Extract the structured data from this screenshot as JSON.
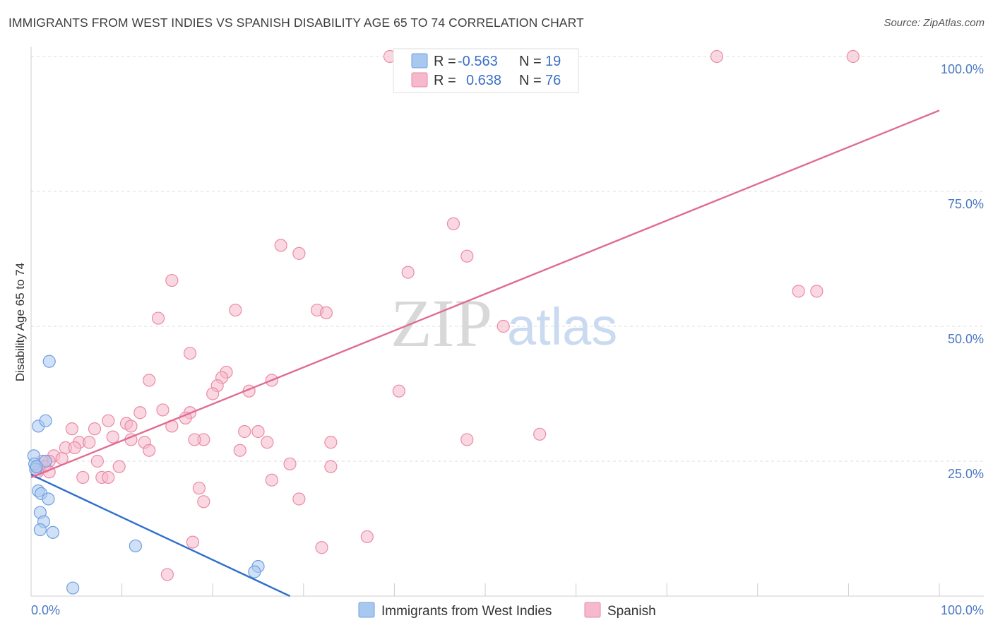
{
  "header": {
    "title": "IMMIGRANTS FROM WEST INDIES VS SPANISH DISABILITY AGE 65 TO 74 CORRELATION CHART",
    "source": "Source: ZipAtlas.com"
  },
  "watermark": {
    "zip": "ZIP",
    "atlas": "atlas"
  },
  "legend": {
    "rows": [
      {
        "r_label": "R =",
        "r_value": "-0.563",
        "n_label": "N =",
        "n_value": "19",
        "color": "#a9c8f0"
      },
      {
        "r_label": "R =",
        "r_value": "0.638",
        "n_label": "N =",
        "n_value": "76",
        "color": "#f6b8cb"
      }
    ]
  },
  "bottom_legend": [
    {
      "label": "Immigrants from West Indies",
      "color": "#a9c8f0"
    },
    {
      "label": "Spanish",
      "color": "#f6b8cb"
    }
  ],
  "chart_data": {
    "type": "scatter",
    "title": "IMMIGRANTS FROM WEST INDIES VS SPANISH DISABILITY AGE 65 TO 74 CORRELATION CHART",
    "xlabel": "",
    "ylabel": "Disability Age 65 to 74",
    "xlim": [
      0,
      100
    ],
    "ylim": [
      0,
      100
    ],
    "x_tick_labels": [
      "0.0%",
      "100.0%"
    ],
    "y_tick_labels": [
      "25.0%",
      "50.0%",
      "75.0%",
      "100.0%"
    ],
    "y_ticks": [
      25,
      50,
      75,
      100
    ],
    "grid": true,
    "legend_position": "top-center",
    "series": [
      {
        "name": "Immigrants from West Indies",
        "color": "#6f9fe0",
        "fill": "#a9c8f0",
        "trend_color": "#2f6fcc",
        "trend": {
          "x": [
            0,
            28.5
          ],
          "y": [
            22.5,
            0
          ]
        },
        "points": [
          [
            0.3,
            26.0
          ],
          [
            0.4,
            24.5
          ],
          [
            0.5,
            23.5
          ],
          [
            0.8,
            31.5
          ],
          [
            1.6,
            32.5
          ],
          [
            2.0,
            43.5
          ],
          [
            0.8,
            19.5
          ],
          [
            1.1,
            19.0
          ],
          [
            1.9,
            18.0
          ],
          [
            1.0,
            15.5
          ],
          [
            1.4,
            13.8
          ],
          [
            1.0,
            12.3
          ],
          [
            2.4,
            11.8
          ],
          [
            11.5,
            9.3
          ],
          [
            25.0,
            5.5
          ],
          [
            24.6,
            4.5
          ],
          [
            4.6,
            1.5
          ],
          [
            1.6,
            25.0
          ],
          [
            0.6,
            24.0
          ]
        ]
      },
      {
        "name": "Spanish",
        "color": "#ea8aa7",
        "fill": "#f6b8cb",
        "trend_color": "#e06c93",
        "trend": {
          "x": [
            0,
            100
          ],
          "y": [
            22.0,
            90.0
          ]
        },
        "points": [
          [
            39.5,
            100
          ],
          [
            53.0,
            100
          ],
          [
            75.5,
            100
          ],
          [
            90.5,
            100
          ],
          [
            46.5,
            69.0
          ],
          [
            27.5,
            65.0
          ],
          [
            29.5,
            63.5
          ],
          [
            48.0,
            63.0
          ],
          [
            41.5,
            60.0
          ],
          [
            15.5,
            58.5
          ],
          [
            84.5,
            56.5
          ],
          [
            86.5,
            56.5
          ],
          [
            22.5,
            53.0
          ],
          [
            31.5,
            53.0
          ],
          [
            32.5,
            52.5
          ],
          [
            14.0,
            51.5
          ],
          [
            52.0,
            50.0
          ],
          [
            17.5,
            45.0
          ],
          [
            21.5,
            41.5
          ],
          [
            21.0,
            40.5
          ],
          [
            26.5,
            40.0
          ],
          [
            13.0,
            40.0
          ],
          [
            20.5,
            39.0
          ],
          [
            20.0,
            37.5
          ],
          [
            24.0,
            38.0
          ],
          [
            40.5,
            38.0
          ],
          [
            14.5,
            34.5
          ],
          [
            12.0,
            34.0
          ],
          [
            17.5,
            34.0
          ],
          [
            17.0,
            33.0
          ],
          [
            8.5,
            32.5
          ],
          [
            10.5,
            32.0
          ],
          [
            11.0,
            31.5
          ],
          [
            15.5,
            31.5
          ],
          [
            4.5,
            31.0
          ],
          [
            7.0,
            31.0
          ],
          [
            23.5,
            30.5
          ],
          [
            25.0,
            30.5
          ],
          [
            56.0,
            30.0
          ],
          [
            9.0,
            29.5
          ],
          [
            11.0,
            29.0
          ],
          [
            19.0,
            29.0
          ],
          [
            18.0,
            29.0
          ],
          [
            48.0,
            29.0
          ],
          [
            26.0,
            28.5
          ],
          [
            5.3,
            28.5
          ],
          [
            6.4,
            28.5
          ],
          [
            12.5,
            28.5
          ],
          [
            33.0,
            28.5
          ],
          [
            3.8,
            27.5
          ],
          [
            4.8,
            27.5
          ],
          [
            13.0,
            27.0
          ],
          [
            23.0,
            27.0
          ],
          [
            2.5,
            26.0
          ],
          [
            3.4,
            25.5
          ],
          [
            2.0,
            25.0
          ],
          [
            1.2,
            25.0
          ],
          [
            7.3,
            25.0
          ],
          [
            1.5,
            24.0
          ],
          [
            0.9,
            23.5
          ],
          [
            0.7,
            23.0
          ],
          [
            9.7,
            24.0
          ],
          [
            28.5,
            24.5
          ],
          [
            33.0,
            24.0
          ],
          [
            5.7,
            22.0
          ],
          [
            7.8,
            22.0
          ],
          [
            8.5,
            22.0
          ],
          [
            26.5,
            21.5
          ],
          [
            18.5,
            20.0
          ],
          [
            29.5,
            18.0
          ],
          [
            19.0,
            17.5
          ],
          [
            37.0,
            11.0
          ],
          [
            17.8,
            10.0
          ],
          [
            32.0,
            9.0
          ],
          [
            15.0,
            4.0
          ],
          [
            2.0,
            23.0
          ]
        ]
      }
    ]
  }
}
